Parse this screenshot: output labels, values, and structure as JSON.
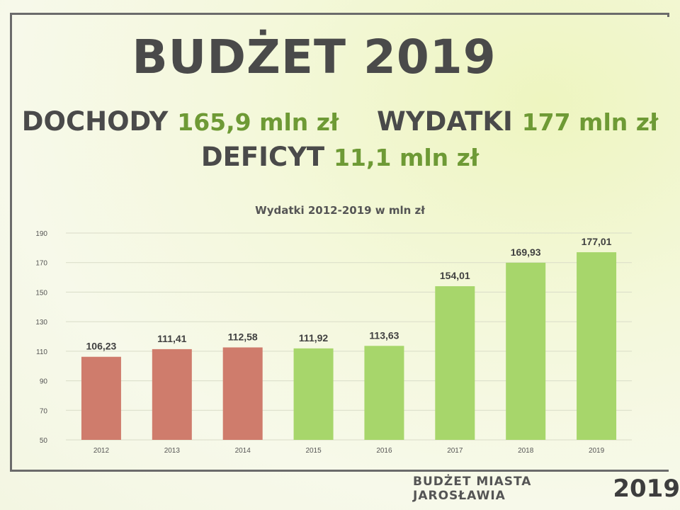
{
  "title": "BUDŻET 2019",
  "summary": {
    "income_label": "DOCHODY",
    "income_value": "165,9 mln zł",
    "expense_label": "WYDATKI",
    "expense_value": "177 mln zł",
    "deficit_label": "DEFICYT",
    "deficit_value": "11,1 mln zł"
  },
  "chart_data": {
    "type": "bar",
    "title": "Wydatki 2012-2019 w mln zł",
    "categories": [
      "2012",
      "2013",
      "2014",
      "2015",
      "2016",
      "2017",
      "2018",
      "2019"
    ],
    "values": [
      106.23,
      111.41,
      112.58,
      111.92,
      113.63,
      154.01,
      169.93,
      177.01
    ],
    "value_labels": [
      "106,23",
      "111,41",
      "112,58",
      "111,92",
      "113,63",
      "154,01",
      "169,93",
      "177,01"
    ],
    "bar_colors": [
      "#cf7c6c",
      "#cf7c6c",
      "#cf7c6c",
      "#a7d66b",
      "#a7d66b",
      "#a7d66b",
      "#a7d66b",
      "#a7d66b"
    ],
    "ylim": [
      50,
      190
    ],
    "yticks": [
      50,
      70,
      90,
      110,
      130,
      150,
      170,
      190
    ],
    "grid": true,
    "legend": "none"
  },
  "footer": {
    "name": "BUDŻET MIASTA JAROSŁAWIA",
    "year": "2019"
  }
}
